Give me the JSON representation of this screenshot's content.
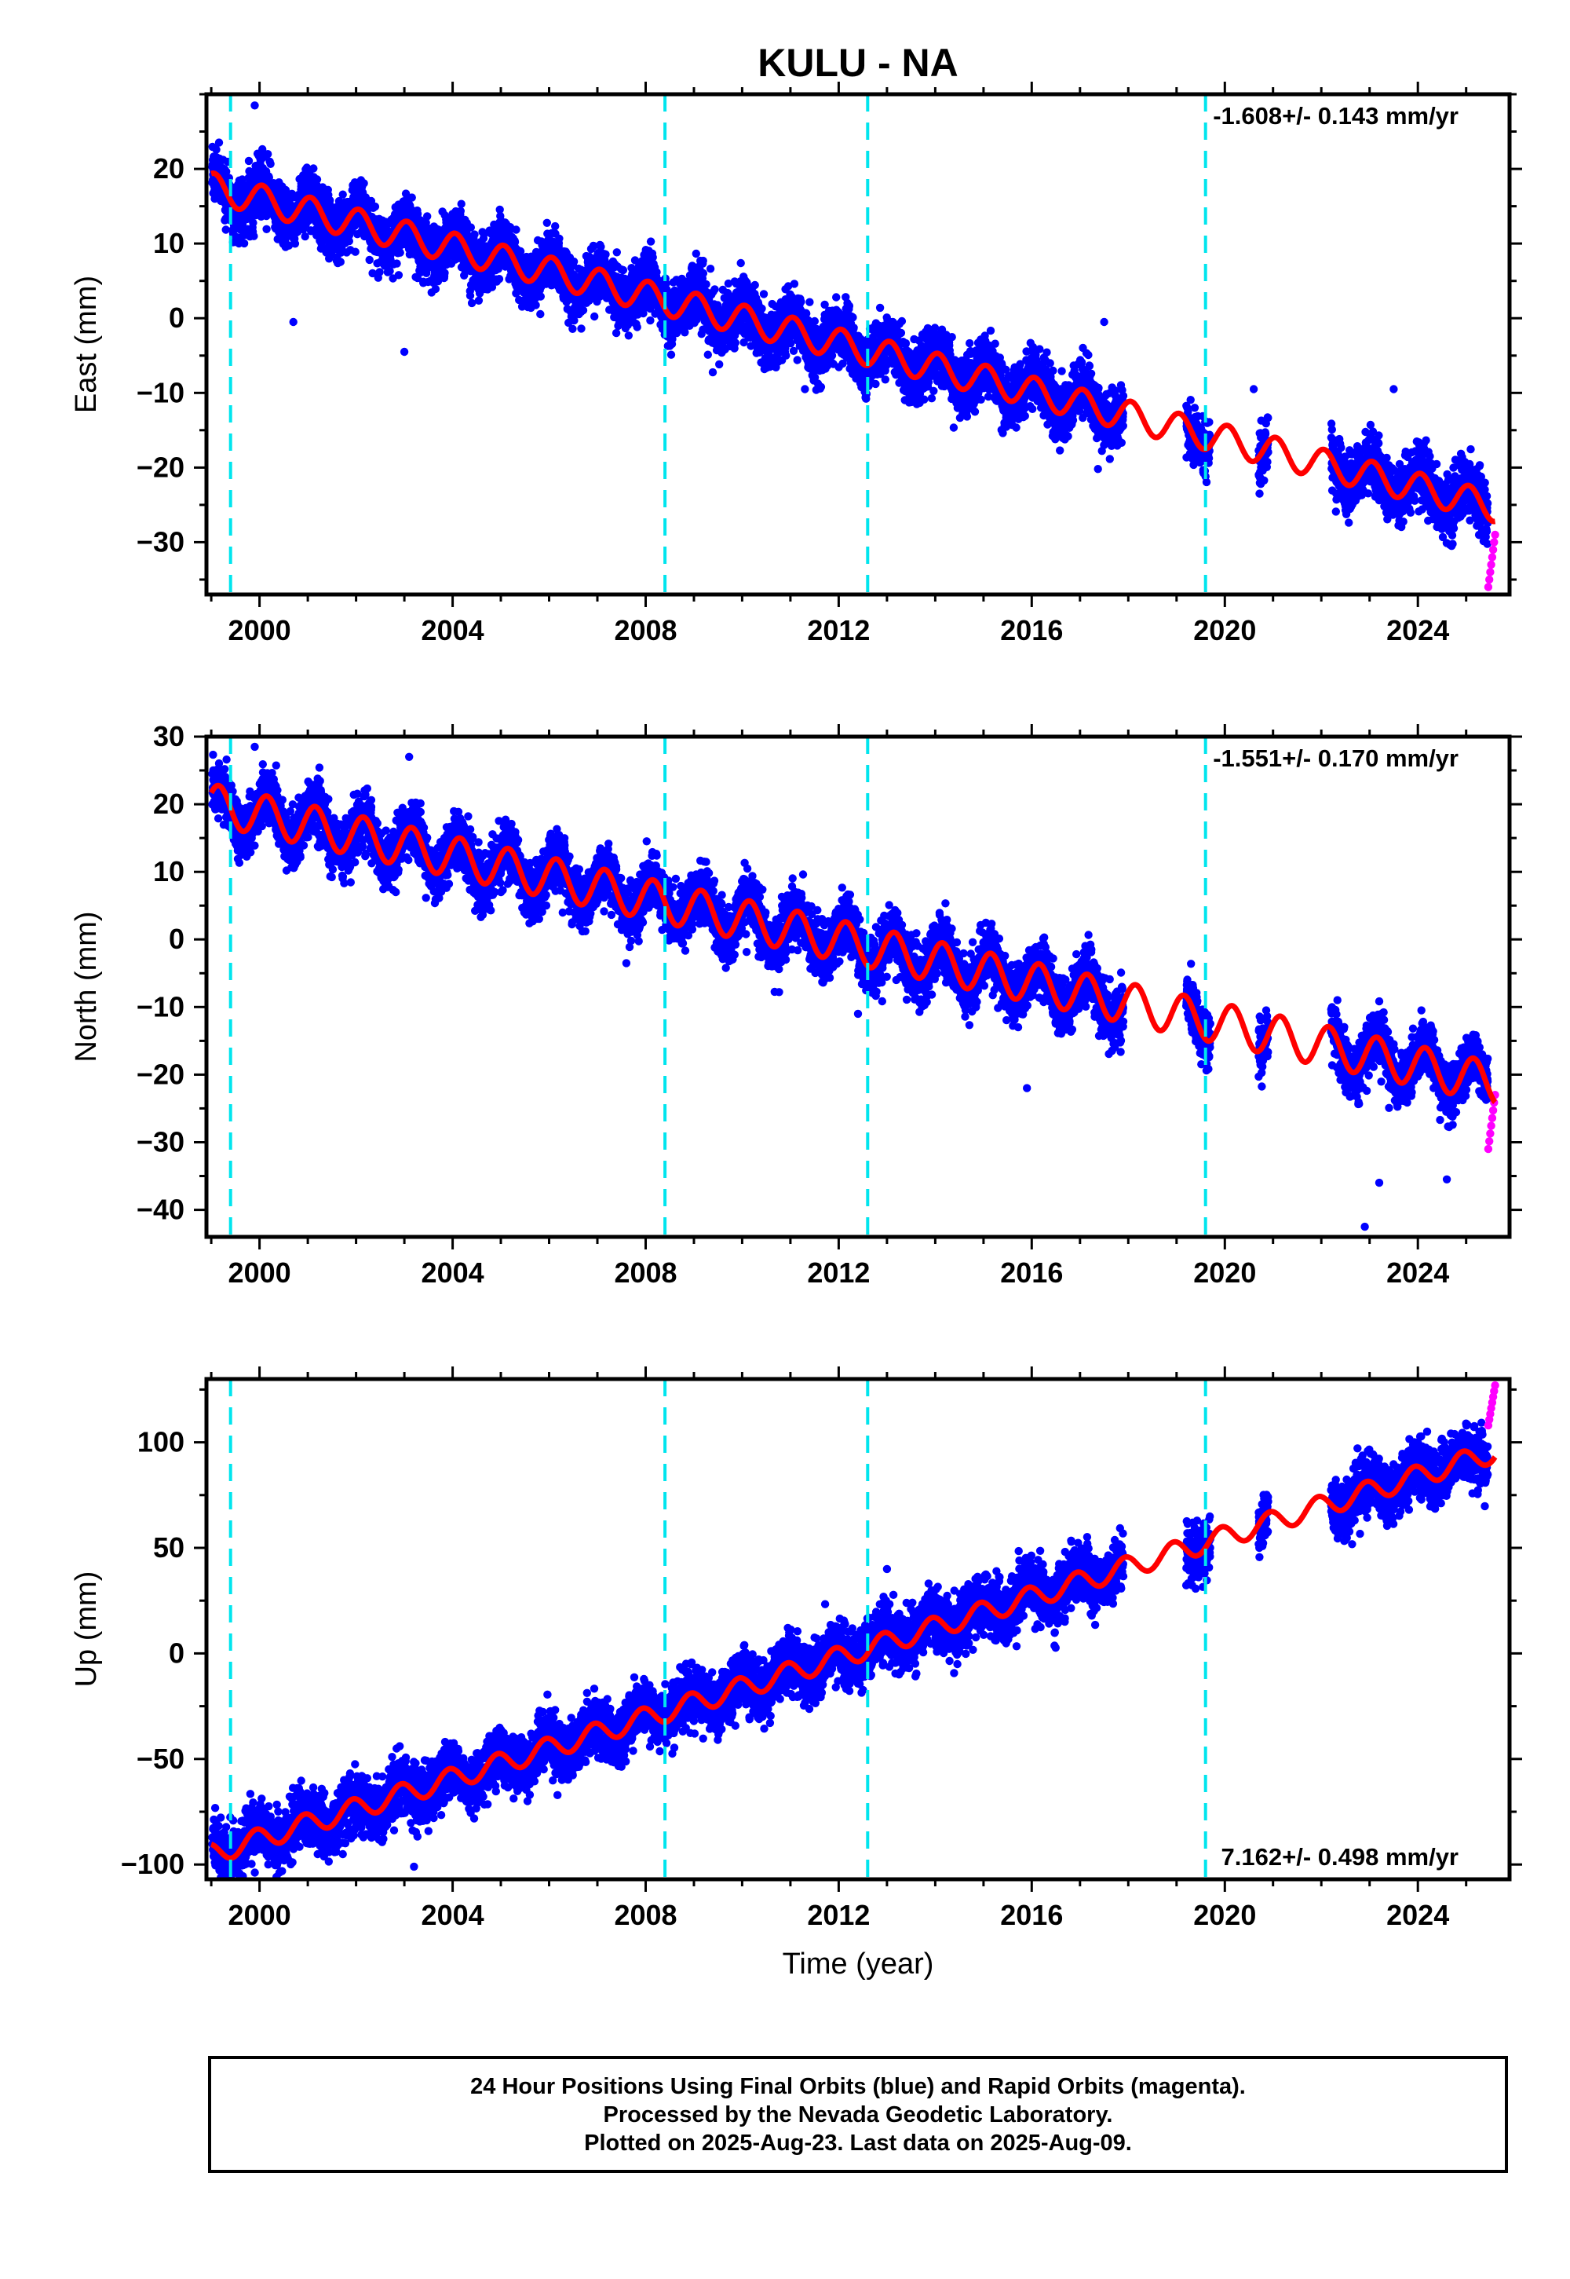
{
  "title": "KULU - NA",
  "colors": {
    "final_orbits": "#0000ff",
    "rapid_orbits": "#ff00ff",
    "model_fit": "#ff0000",
    "equipment_change": "#00e5ee",
    "frame": "#000000"
  },
  "chart_data": [
    {
      "type": "scatter",
      "panel": "east",
      "ylabel": "East (mm)",
      "xlabel": "",
      "xlim": [
        1998.9,
        2025.9
      ],
      "ylim": [
        -37,
        30
      ],
      "xticks": [
        "2000",
        "2004",
        "2008",
        "2012",
        "2016",
        "2020",
        "2024"
      ],
      "yticks": [
        "20",
        "10",
        "0",
        "−10",
        "−20",
        "−30"
      ],
      "rate_label": "-1.608+/- 0.143 mm/yr",
      "rate": -1.608,
      "offset_epochs": [
        1999.4,
        2008.4,
        2012.6,
        2019.6
      ],
      "model": {
        "intercept": 17.5,
        "rate": -1.608,
        "annual_amp": 2.0,
        "annual_phase": 1.2,
        "noise": 1.9
      },
      "gaps": [
        [
          2017.9,
          2019.2
        ],
        [
          2019.7,
          2020.7
        ],
        [
          2020.9,
          2022.2
        ]
      ],
      "final_series_end": 2025.45,
      "rapid_orbits": {
        "x_range": [
          2025.46,
          2025.6
        ],
        "y_range": [
          -36,
          -29
        ]
      },
      "outliers": [
        [
          2000.7,
          -0.5
        ],
        [
          2003.0,
          -4.5
        ],
        [
          2011.3,
          -9.5
        ],
        [
          2017.5,
          -0.5
        ],
        [
          2020.6,
          -9.5
        ],
        [
          2023.5,
          -9.5
        ],
        [
          2024.7,
          -30.5
        ],
        [
          1999.9,
          28.5
        ]
      ]
    },
    {
      "type": "scatter",
      "panel": "north",
      "ylabel": "North (mm)",
      "xlabel": "",
      "xlim": [
        1998.9,
        2025.9
      ],
      "ylim": [
        -44,
        30
      ],
      "xticks": [
        "2000",
        "2004",
        "2008",
        "2012",
        "2016",
        "2020",
        "2024"
      ],
      "yticks": [
        "30",
        "20",
        "10",
        "0",
        "−10",
        "−20",
        "−30",
        "−40"
      ],
      "rate_label": "-1.551+/- 0.170 mm/yr",
      "rate": -1.551,
      "offset_epochs": [
        1999.4,
        2008.4,
        2012.6,
        2019.6
      ],
      "model": {
        "intercept": 20.0,
        "rate": -1.551,
        "annual_amp": 3.0,
        "annual_phase": 0.6,
        "noise": 2.0
      },
      "gaps": [
        [
          2017.9,
          2019.2
        ],
        [
          2019.7,
          2020.7
        ],
        [
          2020.9,
          2022.2
        ]
      ],
      "final_series_end": 2025.45,
      "rapid_orbits": {
        "x_range": [
          2025.46,
          2025.6
        ],
        "y_range": [
          -31,
          -23
        ]
      },
      "outliers": [
        [
          2007.6,
          -3.5
        ],
        [
          2012.4,
          -11
        ],
        [
          2015.9,
          -22
        ],
        [
          2023.2,
          -36
        ],
        [
          2022.9,
          -42.5
        ],
        [
          2024.6,
          -35.5
        ],
        [
          1999.9,
          28.5
        ],
        [
          2003.1,
          27
        ]
      ]
    },
    {
      "type": "scatter",
      "panel": "up",
      "ylabel": "Up (mm)",
      "xlabel": "Time (year)",
      "xlim": [
        1998.9,
        2025.9
      ],
      "ylim": [
        -107,
        130
      ],
      "xticks": [
        "2000",
        "2004",
        "2008",
        "2012",
        "2016",
        "2020",
        "2024"
      ],
      "yticks": [
        "100",
        "50",
        "0",
        "−50",
        "−100"
      ],
      "rate_label": "7.162+/- 0.498 mm/yr",
      "rate": 7.162,
      "offset_epochs": [
        1999.4,
        2008.4,
        2012.6,
        2019.6
      ],
      "model": {
        "intercept": -95.0,
        "rate": 7.162,
        "annual_amp": 5.0,
        "annual_phase": 2.0,
        "noise": 6.5
      },
      "gaps": [
        [
          2017.9,
          2019.2
        ],
        [
          2019.7,
          2020.7
        ],
        [
          2020.9,
          2022.2
        ]
      ],
      "final_series_end": 2025.45,
      "rapid_orbits": {
        "x_range": [
          2025.46,
          2025.6
        ],
        "y_range": [
          108,
          127
        ]
      },
      "outliers": [
        [
          2003.2,
          -101
        ],
        [
          1999.5,
          -99
        ],
        [
          2013.0,
          40
        ],
        [
          2017.4,
          30
        ]
      ]
    }
  ],
  "footer": {
    "line1": "24 Hour Positions Using Final Orbits (blue) and Rapid Orbits (magenta).",
    "line2": "Processed by the Nevada Geodetic Laboratory.",
    "line3": "Plotted on 2025-Aug-23. Last data on 2025-Aug-09."
  }
}
